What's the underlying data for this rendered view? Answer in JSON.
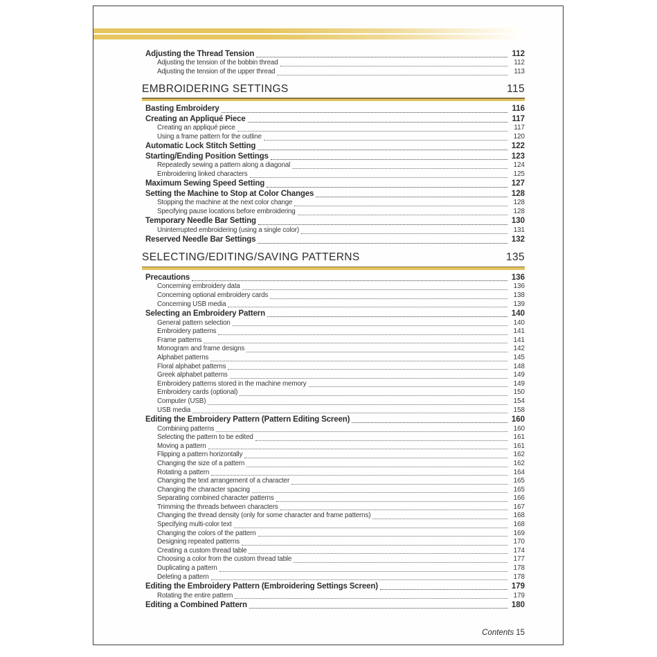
{
  "footer": {
    "label": "Contents",
    "number": "15"
  },
  "colors": {
    "gold": "#e6c660",
    "gold_fade": "#fffdf6",
    "rule_dark": "#847440",
    "text": "#2e2e2e",
    "page_border": "#3b3b3b"
  },
  "toc": {
    "blocks": [
      {
        "type": "entries",
        "items": [
          {
            "level": 1,
            "title": "Adjusting the Thread Tension",
            "page": "112"
          },
          {
            "level": 2,
            "title": "Adjusting the tension of the bobbin thread",
            "page": "112"
          },
          {
            "level": 2,
            "title": "Adjusting the tension of the upper thread",
            "page": "113"
          }
        ]
      },
      {
        "type": "chapter",
        "title": "EMBROIDERING SETTINGS",
        "page": "115"
      },
      {
        "type": "entries",
        "items": [
          {
            "level": 1,
            "title": "Basting Embroidery",
            "page": "116"
          },
          {
            "level": 1,
            "title": "Creating an Appliqué Piece",
            "page": "117"
          },
          {
            "level": 2,
            "title": "Creating an appliqué piece",
            "page": "117"
          },
          {
            "level": 2,
            "title": "Using a frame pattern for the outline",
            "page": "120"
          },
          {
            "level": 1,
            "title": "Automatic Lock Stitch Setting",
            "page": "122"
          },
          {
            "level": 1,
            "title": "Starting/Ending Position Settings",
            "page": "123"
          },
          {
            "level": 2,
            "title": "Repeatedly sewing a pattern along a diagonal",
            "page": "124"
          },
          {
            "level": 2,
            "title": "Embroidering linked characters",
            "page": "125"
          },
          {
            "level": 1,
            "title": "Maximum Sewing Speed Setting",
            "page": "127"
          },
          {
            "level": 1,
            "title": "Setting the Machine to Stop at Color Changes",
            "page": "128"
          },
          {
            "level": 2,
            "title": "Stopping the machine at the next color change",
            "page": "128"
          },
          {
            "level": 2,
            "title": "Specifying pause locations before embroidering",
            "page": "128"
          },
          {
            "level": 1,
            "title": "Temporary Needle Bar Setting",
            "page": "130"
          },
          {
            "level": 2,
            "title": "Uninterrupted embroidering (using a single color)",
            "page": "131"
          },
          {
            "level": 1,
            "title": "Reserved Needle Bar Settings",
            "page": "132"
          }
        ]
      },
      {
        "type": "chapter",
        "title": "SELECTING/EDITING/SAVING PATTERNS",
        "page": "135"
      },
      {
        "type": "entries",
        "items": [
          {
            "level": 1,
            "title": "Precautions",
            "page": "136"
          },
          {
            "level": 2,
            "title": "Concerning embroidery data",
            "page": "136"
          },
          {
            "level": 2,
            "title": "Concerning optional embroidery cards",
            "page": "138"
          },
          {
            "level": 2,
            "title": "Concerning USB media",
            "page": "139"
          },
          {
            "level": 1,
            "title": "Selecting an Embroidery Pattern",
            "page": "140"
          },
          {
            "level": 2,
            "title": "General pattern selection",
            "page": "140"
          },
          {
            "level": 2,
            "title": "Embroidery patterns",
            "page": "141"
          },
          {
            "level": 2,
            "title": "Frame patterns",
            "page": "141"
          },
          {
            "level": 2,
            "title": "Monogram and frame designs",
            "page": "142"
          },
          {
            "level": 2,
            "title": "Alphabet patterns",
            "page": "145"
          },
          {
            "level": 2,
            "title": "Floral alphabet patterns",
            "page": "148"
          },
          {
            "level": 2,
            "title": "Greek alphabet patterns",
            "page": "149"
          },
          {
            "level": 2,
            "title": "Embroidery patterns stored in the machine memory",
            "page": "149"
          },
          {
            "level": 2,
            "title": "Embroidery cards (optional)",
            "page": "150"
          },
          {
            "level": 2,
            "title": "Computer (USB)",
            "page": "154"
          },
          {
            "level": 2,
            "title": "USB media",
            "page": "158"
          },
          {
            "level": 1,
            "title": "Editing the Embroidery Pattern (Pattern Editing Screen)",
            "page": "160"
          },
          {
            "level": 2,
            "title": "Combining patterns",
            "page": "160"
          },
          {
            "level": 2,
            "title": "Selecting the pattern to be edited",
            "page": "161"
          },
          {
            "level": 2,
            "title": "Moving a pattern",
            "page": "161"
          },
          {
            "level": 2,
            "title": "Flipping a pattern horizontally",
            "page": "162"
          },
          {
            "level": 2,
            "title": "Changing the size of a pattern",
            "page": "162"
          },
          {
            "level": 2,
            "title": "Rotating a pattern",
            "page": "164"
          },
          {
            "level": 2,
            "title": "Changing the text arrangement of a character",
            "page": "165"
          },
          {
            "level": 2,
            "title": "Changing the character spacing",
            "page": "165"
          },
          {
            "level": 2,
            "title": "Separating combined character patterns",
            "page": "166"
          },
          {
            "level": 2,
            "title": "Trimming the threads between characters",
            "page": "167"
          },
          {
            "level": 2,
            "title": "Changing the thread density (only for some character and frame patterns)",
            "page": "168"
          },
          {
            "level": 2,
            "title": "Specifying multi-color text",
            "page": "168"
          },
          {
            "level": 2,
            "title": "Changing the colors of the pattern",
            "page": "169"
          },
          {
            "level": 2,
            "title": "Designing repeated patterns",
            "page": "170"
          },
          {
            "level": 2,
            "title": "Creating a custom thread table",
            "page": "174"
          },
          {
            "level": 2,
            "title": "Choosing a color from the custom thread table",
            "page": "177"
          },
          {
            "level": 2,
            "title": "Duplicating a pattern",
            "page": "178"
          },
          {
            "level": 2,
            "title": "Deleting a pattern",
            "page": "178"
          },
          {
            "level": 1,
            "title": "Editing the Embroidery Pattern (Embroidering Settings Screen)",
            "page": "179"
          },
          {
            "level": 2,
            "title": "Rotating the entire pattern",
            "page": "179"
          },
          {
            "level": 1,
            "title": "Editing a Combined Pattern",
            "page": "180"
          }
        ]
      }
    ]
  }
}
